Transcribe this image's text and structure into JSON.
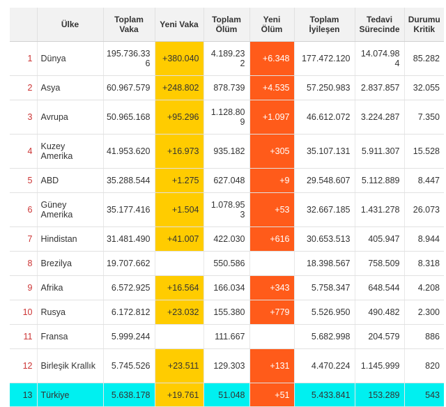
{
  "headers": {
    "num": "",
    "country": "Ülke",
    "total_cases": "Toplam Vaka",
    "new_cases": "Yeni Vaka",
    "total_deaths": "Toplam Ölüm",
    "new_deaths": "Yeni Ölüm",
    "total_recovered": "Toplam İyileşen",
    "active": "Tedavi Sürecinde",
    "critical": "Durumu Kritik"
  },
  "rows": [
    {
      "n": "1",
      "country": "Dünya",
      "total_cases": "195.736.336",
      "new_cases": "+380.040",
      "total_deaths": "4.189.232",
      "new_deaths": "+6.348",
      "total_recovered": "177.472.120",
      "active": "14.074.984",
      "critical": "85.282"
    },
    {
      "n": "2",
      "country": "Asya",
      "total_cases": "60.967.579",
      "new_cases": "+248.802",
      "total_deaths": "878.739",
      "new_deaths": "+4.535",
      "total_recovered": "57.250.983",
      "active": "2.837.857",
      "critical": "32.055"
    },
    {
      "n": "3",
      "country": "Avrupa",
      "total_cases": "50.965.168",
      "new_cases": "+95.296",
      "total_deaths": "1.128.809",
      "new_deaths": "+1.097",
      "total_recovered": "46.612.072",
      "active": "3.224.287",
      "critical": "7.350"
    },
    {
      "n": "4",
      "country": "Kuzey Amerika",
      "total_cases": "41.953.620",
      "new_cases": "+16.973",
      "total_deaths": "935.182",
      "new_deaths": "+305",
      "total_recovered": "35.107.131",
      "active": "5.911.307",
      "critical": "15.528"
    },
    {
      "n": "5",
      "country": "ABD",
      "total_cases": "35.288.544",
      "new_cases": "+1.275",
      "total_deaths": "627.048",
      "new_deaths": "+9",
      "total_recovered": "29.548.607",
      "active": "5.112.889",
      "critical": "8.447"
    },
    {
      "n": "6",
      "country": "Güney Amerika",
      "total_cases": "35.177.416",
      "new_cases": "+1.504",
      "total_deaths": "1.078.953",
      "new_deaths": "+53",
      "total_recovered": "32.667.185",
      "active": "1.431.278",
      "critical": "26.073"
    },
    {
      "n": "7",
      "country": "Hindistan",
      "total_cases": "31.481.490",
      "new_cases": "+41.007",
      "total_deaths": "422.030",
      "new_deaths": "+616",
      "total_recovered": "30.653.513",
      "active": "405.947",
      "critical": "8.944"
    },
    {
      "n": "8",
      "country": "Brezilya",
      "total_cases": "19.707.662",
      "new_cases": "",
      "total_deaths": "550.586",
      "new_deaths": "",
      "total_recovered": "18.398.567",
      "active": "758.509",
      "critical": "8.318"
    },
    {
      "n": "9",
      "country": "Afrika",
      "total_cases": "6.572.925",
      "new_cases": "+16.564",
      "total_deaths": "166.034",
      "new_deaths": "+343",
      "total_recovered": "5.758.347",
      "active": "648.544",
      "critical": "4.208"
    },
    {
      "n": "10",
      "country": "Rusya",
      "total_cases": "6.172.812",
      "new_cases": "+23.032",
      "total_deaths": "155.380",
      "new_deaths": "+779",
      "total_recovered": "5.526.950",
      "active": "490.482",
      "critical": "2.300"
    },
    {
      "n": "11",
      "country": "Fransa",
      "total_cases": "5.999.244",
      "new_cases": "",
      "total_deaths": "111.667",
      "new_deaths": "",
      "total_recovered": "5.682.998",
      "active": "204.579",
      "critical": "886"
    },
    {
      "n": "12",
      "country": "Birleşik Krallık",
      "total_cases": "5.745.526",
      "new_cases": "+23.511",
      "total_deaths": "129.303",
      "new_deaths": "+131",
      "total_recovered": "4.470.224",
      "active": "1.145.999",
      "critical": "820"
    },
    {
      "n": "13",
      "country": "Türkiye",
      "total_cases": "5.638.178",
      "new_cases": "+19.761",
      "total_deaths": "51.048",
      "new_deaths": "+51",
      "total_recovered": "5.433.841",
      "active": "153.289",
      "critical": "543"
    }
  ],
  "colors": {
    "new_cases_bg": "#ffcc00",
    "new_deaths_bg": "#ff5b1a",
    "highlight_row_bg": "#00f0f0",
    "rank_text": "#cc3333"
  }
}
